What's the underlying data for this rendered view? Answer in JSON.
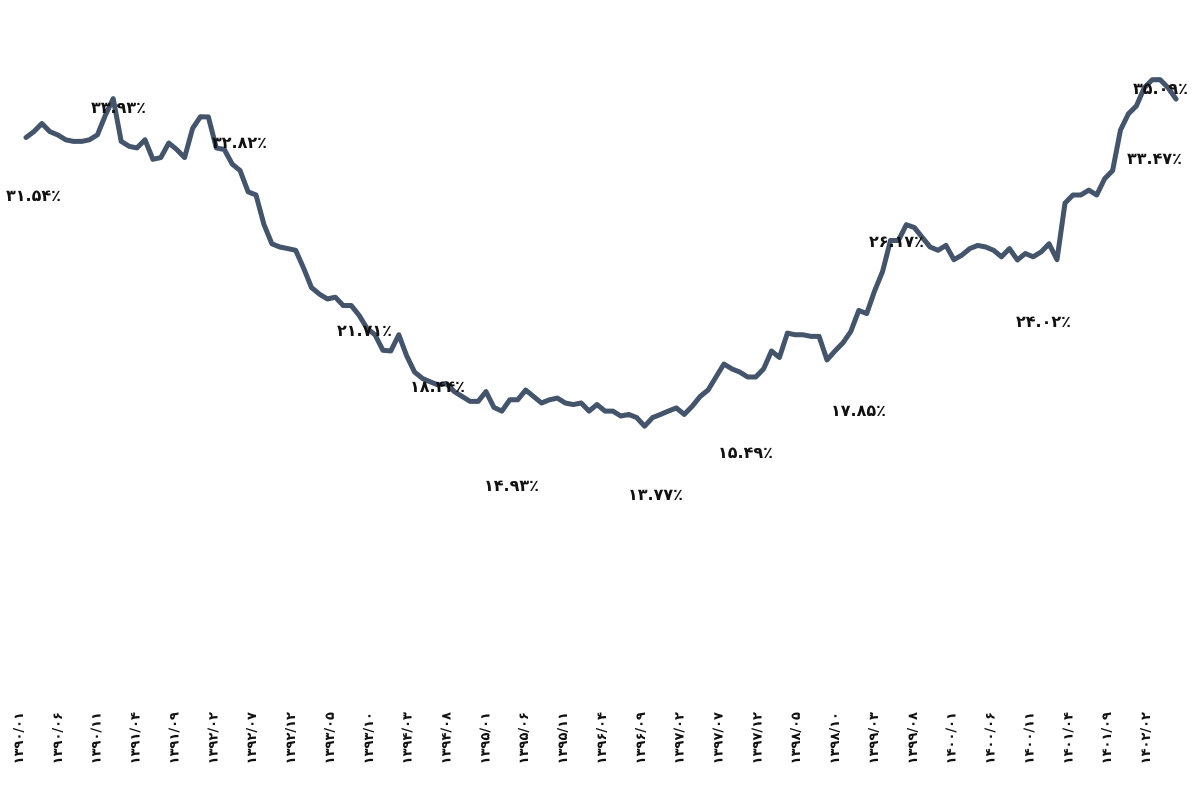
{
  "chart_data": {
    "type": "line",
    "title": "",
    "xlabel": "",
    "ylabel": "",
    "ylim": [
      0,
      40
    ],
    "grid": false,
    "legend": "none",
    "line_color": "#44546a",
    "tick_labels": [
      "۱۳۹۰/۰۱",
      "۱۳۹۰/۰۶",
      "۱۳۹۰/۱۱",
      "۱۳۹۱/۰۴",
      "۱۳۹۱/۰۹",
      "۱۳۹۲/۰۲",
      "۱۳۹۲/۰۷",
      "۱۳۹۲/۱۲",
      "۱۳۹۳/۰۵",
      "۱۳۹۳/۱۰",
      "۱۳۹۴/۰۳",
      "۱۳۹۴/۰۸",
      "۱۳۹۵/۰۱",
      "۱۳۹۵/۰۶",
      "۱۳۹۵/۱۱",
      "۱۳۹۶/۰۴",
      "۱۳۹۶/۰۹",
      "۱۳۹۷/۰۲",
      "۱۳۹۷/۰۷",
      "۱۳۹۷/۱۲",
      "۱۳۹۸/۰۵",
      "۱۳۹۸/۱۰",
      "۱۳۹۹/۰۳",
      "۱۳۹۹/۰۸",
      "۱۴۰۰/۰۱",
      "۱۴۰۰/۰۶",
      "۱۴۰۰/۱۱",
      "۱۴۰۱/۰۴",
      "۱۴۰۱/۰۹",
      "۱۴۰۲/۰۲"
    ],
    "values": [
      31.54,
      31.9,
      32.4,
      31.9,
      31.7,
      31.4,
      31.3,
      31.3,
      31.4,
      31.7,
      32.9,
      33.93,
      31.3,
      31.0,
      30.9,
      31.4,
      30.2,
      30.3,
      31.2,
      30.8,
      30.3,
      32.1,
      32.82,
      32.8,
      30.9,
      30.8,
      29.9,
      29.5,
      28.2,
      28.0,
      26.2,
      25.0,
      24.8,
      24.7,
      24.6,
      23.5,
      22.3,
      21.9,
      21.6,
      21.71,
      21.2,
      21.2,
      20.6,
      19.8,
      19.4,
      18.44,
      18.4,
      19.4,
      18.1,
      17.1,
      16.7,
      16.5,
      16.3,
      16.4,
      15.9,
      15.6,
      15.3,
      15.3,
      15.9,
      14.93,
      14.7,
      15.4,
      15.4,
      16.0,
      15.6,
      15.2,
      15.4,
      15.5,
      15.2,
      15.1,
      15.2,
      14.7,
      15.1,
      14.7,
      14.7,
      14.4,
      14.5,
      14.3,
      13.77,
      14.3,
      14.5,
      14.7,
      14.9,
      14.5,
      15.0,
      15.6,
      16.0,
      16.8,
      17.6,
      17.3,
      17.1,
      16.8,
      16.8,
      17.3,
      18.4,
      18.0,
      19.5,
      19.4,
      19.4,
      19.3,
      19.3,
      17.85,
      18.4,
      18.9,
      19.6,
      20.9,
      20.7,
      22.1,
      23.3,
      25.2,
      25.2,
      26.17,
      26.0,
      25.4,
      24.8,
      24.6,
      24.9,
      24.02,
      24.3,
      24.7,
      24.9,
      24.8,
      24.6,
      24.2,
      24.7,
      24.0,
      24.4,
      24.2,
      24.5,
      25.0,
      24.02,
      27.5,
      28.0,
      28.0,
      28.3,
      28.0,
      29.0,
      29.5,
      32.0,
      33.0,
      33.47,
      34.6,
      35.09,
      35.1,
      34.6,
      33.9
    ]
  },
  "annotations": {
    "a1": "۳۱.۵۴٪",
    "a2": "۳۳.۹۳٪",
    "a3": "۳۲.۸۲٪",
    "a4": "۲۱.۷۱٪",
    "a5": "۱۸.۴۴٪",
    "a6": "۱۴.۹۳٪",
    "a7": "۱۳.۷۷٪",
    "a8": "۱۵.۴۹٪",
    "a9": "۱۷.۸۵٪",
    "a10": "۲۶.۱۷٪",
    "a11": "۲۴.۰۲٪",
    "a12": "۳۵.۰۹٪",
    "a13": "۳۳.۴۷٪"
  }
}
